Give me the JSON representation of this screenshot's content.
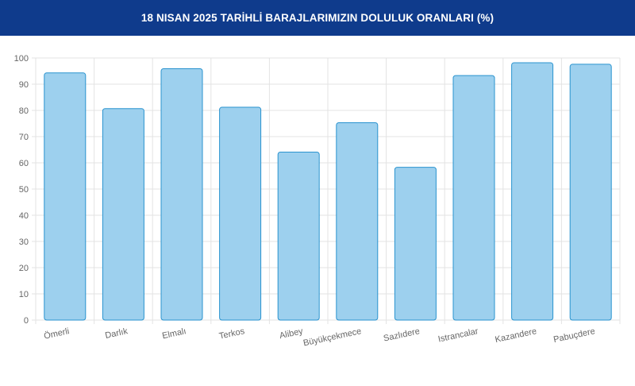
{
  "header": {
    "title": "18 NISAN 2025 TARİHLİ BARAJLARIMIZIN DOLULUK ORANLARI (%)"
  },
  "colors": {
    "header_bg": "#0f3b8c",
    "bar_fill": "#9dd0ee",
    "bar_stroke": "#2a93cf",
    "grid": "#e3e3e3",
    "tick_text": "#666666"
  },
  "chart_data": {
    "type": "bar",
    "title": "18 NISAN 2025 TARİHLİ BARAJLARIMIZIN DOLULUK ORANLARI (%)",
    "categories": [
      "Ömerli",
      "Darlık",
      "Elmalı",
      "Terkos",
      "Alibey",
      "Büyükçekmece",
      "Sazlıdere",
      "Istrancalar",
      "Kazandere",
      "Pabuçdere"
    ],
    "values": [
      94.3,
      80.7,
      95.9,
      81.2,
      64.1,
      75.3,
      58.3,
      93.3,
      98.2,
      97.6
    ],
    "ylim": [
      0,
      100
    ],
    "yticks": [
      "0",
      "10",
      "20",
      "30",
      "40",
      "50",
      "60",
      "70",
      "80",
      "90",
      "100"
    ],
    "grid": true,
    "legend": "none",
    "xlabel": "",
    "ylabel": ""
  }
}
